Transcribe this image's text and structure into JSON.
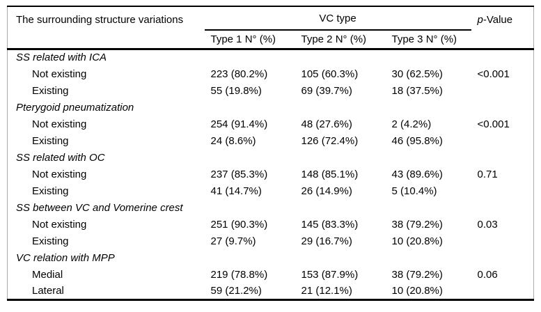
{
  "table": {
    "col1_header": "The surrounding structure variations",
    "group_header": "VC type",
    "p_header": {
      "italic": "p",
      "rest": "-Value"
    },
    "subheaders": [
      "Type 1 N° (%)",
      "Type 2 N° (%)",
      "Type 3 N° (%)"
    ],
    "sections": [
      {
        "title": "SS related with ICA",
        "rows": [
          {
            "label": "Not existing",
            "type1": "223 (80.2%)",
            "type2": "105 (60.3%)",
            "type3": "30 (62.5%)",
            "p": "<0.001"
          },
          {
            "label": "Existing",
            "type1": "55 (19.8%)",
            "type2": "69 (39.7%)",
            "type3": "18 (37.5%)",
            "p": ""
          }
        ]
      },
      {
        "title": "Pterygoid pneumatization",
        "rows": [
          {
            "label": "Not existing",
            "type1": "254 (91.4%)",
            "type2": "48 (27.6%)",
            "type3": "2 (4.2%)",
            "p": "<0.001"
          },
          {
            "label": "Existing",
            "type1": "24 (8.6%)",
            "type2": "126 (72.4%)",
            "type3": "46 (95.8%)",
            "p": ""
          }
        ]
      },
      {
        "title": "SS related with OC",
        "rows": [
          {
            "label": "Not existing",
            "type1": "237 (85.3%)",
            "type2": "148 (85.1%)",
            "type3": "43 (89.6%)",
            "p": "0.71"
          },
          {
            "label": "Existing",
            "type1": "41 (14.7%)",
            "type2": "26 (14.9%)",
            "type3": "5 (10.4%)",
            "p": ""
          }
        ]
      },
      {
        "title": "SS between VC and Vomerine crest",
        "rows": [
          {
            "label": "Not existing",
            "type1": "251 (90.3%)",
            "type2": "145 (83.3%)",
            "type3": "38 (79.2%)",
            "p": "0.03"
          },
          {
            "label": "Existing",
            "type1": "27 (9.7%)",
            "type2": "29 (16.7%)",
            "type3": "10 (20.8%)",
            "p": ""
          }
        ]
      },
      {
        "title": "VC relation with MPP",
        "rows": [
          {
            "label": "Medial",
            "type1": "219 (78.8%)",
            "type2": "153 (87.9%)",
            "type3": "38 (79.2%)",
            "p": "0.06"
          },
          {
            "label": "Lateral",
            "type1": "59 (21.2%)",
            "type2": "21 (12.1%)",
            "type3": "10 (20.8%)",
            "p": ""
          }
        ]
      }
    ]
  }
}
